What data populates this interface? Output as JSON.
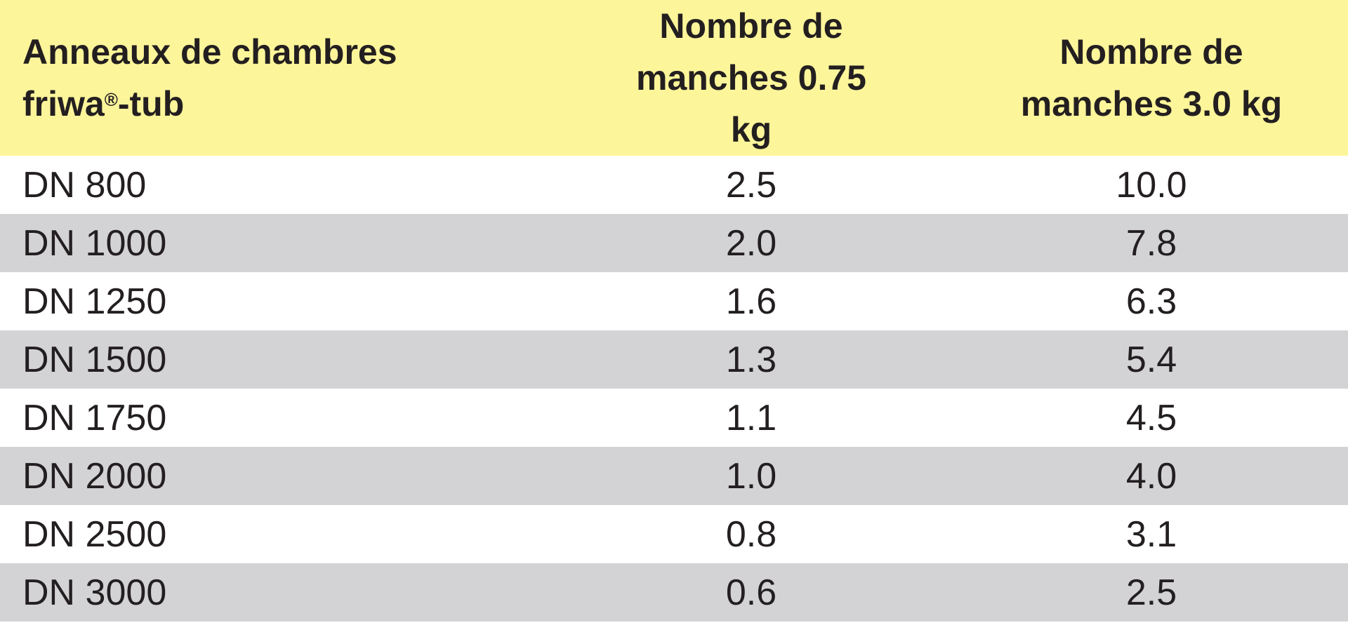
{
  "header": {
    "col1_line1": "Anneaux de chambres",
    "col1_brand": "friwa",
    "col1_reg": "®",
    "col1_suffix": "-tub",
    "col2": "Nombre de manches 0.75 kg",
    "col3": "Nombre de manches 3.0 kg"
  },
  "colors": {
    "header_bg": "#fdf59a",
    "stripe_bg": "#d3d3d5"
  },
  "rows": [
    {
      "name": "DN 800",
      "v075": "2.5",
      "v30": "10.0"
    },
    {
      "name": "DN 1000",
      "v075": "2.0",
      "v30": "7.8"
    },
    {
      "name": "DN 1250",
      "v075": "1.6",
      "v30": "6.3"
    },
    {
      "name": "DN 1500",
      "v075": "1.3",
      "v30": "5.4"
    },
    {
      "name": "DN 1750",
      "v075": "1.1",
      "v30": "4.5"
    },
    {
      "name": "DN 2000",
      "v075": "1.0",
      "v30": "4.0"
    },
    {
      "name": "DN 2500",
      "v075": "0.8",
      "v30": "3.1"
    },
    {
      "name": "DN 3000",
      "v075": "0.6",
      "v30": "2.5"
    }
  ]
}
